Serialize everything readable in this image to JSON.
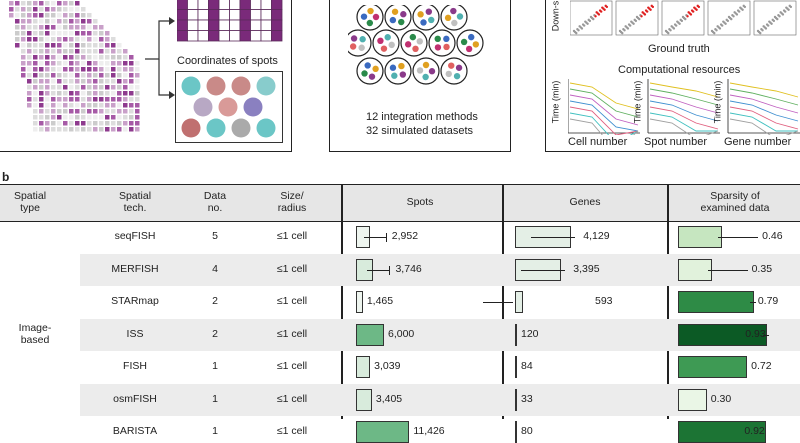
{
  "panel_a": {
    "coords_label": "Coordinates of spots",
    "methods_line1": "12 integration methods",
    "methods_line2": "32 simulated datasets",
    "ground_truth": "Ground truth",
    "downsampled_axis": "Down-s",
    "comp_resources": "Computational resources",
    "time_label": "Time (min)",
    "x_labels": [
      "Cell number",
      "Spot number",
      "Gene number"
    ]
  },
  "panel_b_label": "b",
  "table": {
    "headers": {
      "spatial_type": "Spatial\ntype",
      "spatial_tech": "Spatial\ntech.",
      "data_no": "Data\nno.",
      "size": "Size/\nradius",
      "spots": "Spots",
      "genes": "Genes",
      "sparsity": "Sparsity of\nexamined data"
    },
    "group_label": "Image-\nbased",
    "rows": [
      {
        "tech": "seqFISH",
        "n": "5",
        "size": "≤1 cell",
        "spots": 2952,
        "spots_label": "2,952",
        "genes": 4129,
        "genes_label": "4,129",
        "sparsity": 0.46,
        "sparsity_label": "0.46",
        "spot_err": true,
        "gene_err": true,
        "sp_err": true,
        "color": "#c6e6c0"
      },
      {
        "tech": "MERFISH",
        "n": "4",
        "size": "≤1 cell",
        "spots": 3746,
        "spots_label": "3,746",
        "genes": 3395,
        "genes_label": "3,395",
        "sparsity": 0.35,
        "sparsity_label": "0.35",
        "spot_err": true,
        "gene_err": true,
        "sp_err": true,
        "color": "#e1f2dc"
      },
      {
        "tech": "STARmap",
        "n": "2",
        "size": "≤1 cell",
        "spots": 1465,
        "spots_label": "1,465",
        "genes": 593,
        "genes_label": "593",
        "sparsity": 0.79,
        "sparsity_label": "0.79",
        "spot_err": false,
        "gene_err": true,
        "sp_err": true,
        "color": "#2e8b46"
      },
      {
        "tech": "ISS",
        "n": "2",
        "size": "≤1 cell",
        "spots": 6000,
        "spots_label": "6,000",
        "genes": 120,
        "genes_label": "120",
        "sparsity": 0.93,
        "sparsity_label": "0.93",
        "spot_err": false,
        "gene_err": false,
        "sp_err": true,
        "color": "#0c5a25"
      },
      {
        "tech": "FISH",
        "n": "1",
        "size": "≤1 cell",
        "spots": 3039,
        "spots_label": "3,039",
        "genes": 84,
        "genes_label": "84",
        "sparsity": 0.72,
        "sparsity_label": "0.72",
        "spot_err": false,
        "gene_err": false,
        "sp_err": false,
        "color": "#3e9a54"
      },
      {
        "tech": "osmFISH",
        "n": "1",
        "size": "≤1 cell",
        "spots": 3405,
        "spots_label": "3,405",
        "genes": 33,
        "genes_label": "33",
        "sparsity": 0.3,
        "sparsity_label": "0.30",
        "spot_err": false,
        "gene_err": false,
        "sp_err": false,
        "color": "#eaf6e6"
      },
      {
        "tech": "BARISTA",
        "n": "1",
        "size": "≤1 cell",
        "spots": 11426,
        "spots_label": "11,426",
        "genes": 80,
        "genes_label": "80",
        "sparsity": 0.92,
        "sparsity_label": "0.92",
        "spot_err": false,
        "gene_err": false,
        "sp_err": false,
        "color": "#1c7434"
      }
    ]
  },
  "colors": {
    "table_header_bg": "#e6e6e6",
    "row_alt_bg": "#ececec",
    "magenta": "#8e3a8e",
    "spots_green": "#6db886"
  }
}
